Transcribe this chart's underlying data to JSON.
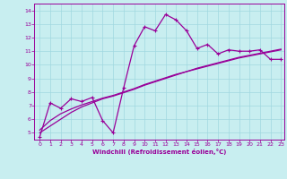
{
  "xlabel": "Windchill (Refroidissement éolien,°C)",
  "xlim": [
    -0.5,
    23.3
  ],
  "ylim": [
    4.5,
    14.5
  ],
  "xticks": [
    0,
    1,
    2,
    3,
    4,
    5,
    6,
    7,
    8,
    9,
    10,
    11,
    12,
    13,
    14,
    15,
    16,
    17,
    18,
    19,
    20,
    21,
    22,
    23
  ],
  "yticks": [
    5,
    6,
    7,
    8,
    9,
    10,
    11,
    12,
    13,
    14
  ],
  "background_color": "#c8eef0",
  "grid_color": "#a0d8e0",
  "line_color": "#990099",
  "line1_x": [
    0,
    1,
    2,
    3,
    4,
    5,
    6,
    7,
    8,
    9,
    10,
    11,
    12,
    13,
    14,
    15,
    16,
    17,
    18,
    19,
    20,
    21,
    22,
    23
  ],
  "line1_y": [
    4.7,
    7.2,
    6.8,
    7.5,
    7.3,
    7.6,
    5.9,
    5.0,
    8.3,
    11.4,
    12.8,
    12.5,
    13.7,
    13.3,
    12.5,
    11.2,
    11.5,
    10.8,
    11.1,
    11.0,
    11.0,
    11.1,
    10.4,
    10.4
  ],
  "line2_x": [
    0,
    1,
    2,
    3,
    4,
    5,
    6,
    7,
    8,
    9,
    10,
    11,
    12,
    13,
    14,
    15,
    16,
    17,
    18,
    19,
    20,
    21,
    22,
    23
  ],
  "line2_y": [
    5.0,
    5.5,
    6.0,
    6.5,
    6.9,
    7.2,
    7.5,
    7.7,
    7.95,
    8.2,
    8.5,
    8.75,
    9.0,
    9.25,
    9.5,
    9.7,
    9.9,
    10.1,
    10.3,
    10.5,
    10.65,
    10.8,
    10.95,
    11.1
  ],
  "line3_x": [
    0,
    1,
    2,
    3,
    4,
    5,
    6,
    7,
    8,
    9,
    10,
    11,
    12,
    13,
    14,
    15,
    16,
    17,
    18,
    19,
    20,
    21,
    22,
    23
  ],
  "line3_y": [
    5.2,
    5.9,
    6.4,
    6.75,
    7.05,
    7.3,
    7.55,
    7.75,
    8.0,
    8.25,
    8.55,
    8.8,
    9.05,
    9.3,
    9.5,
    9.75,
    9.95,
    10.15,
    10.35,
    10.55,
    10.7,
    10.85,
    11.0,
    11.15
  ]
}
